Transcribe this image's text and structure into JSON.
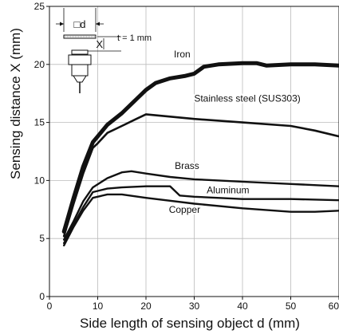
{
  "chart_data": {
    "type": "line",
    "title": "",
    "xlabel": "Side length of sensing object d (mm)",
    "ylabel": "Sensing distance X (mm)",
    "xlim": [
      0,
      60
    ],
    "ylim": [
      0,
      25
    ],
    "xticks": [
      0,
      10,
      20,
      30,
      40,
      50,
      60
    ],
    "yticks": [
      0,
      5,
      10,
      15,
      20,
      25
    ],
    "grid": true,
    "legend": "inline labels",
    "series": [
      {
        "name": "Iron",
        "x": [
          3,
          5,
          7,
          9,
          10,
          12,
          15,
          18,
          20,
          22,
          25,
          28,
          30,
          32,
          35,
          40,
          43,
          45,
          50,
          55,
          60
        ],
        "y": [
          5.6,
          8.5,
          11.2,
          13.3,
          13.8,
          14.8,
          15.8,
          17.0,
          17.8,
          18.4,
          18.8,
          19.0,
          19.2,
          19.8,
          20.0,
          20.1,
          20.1,
          19.9,
          20.0,
          20.0,
          19.9
        ]
      },
      {
        "name": "Stainless steel (SUS303)",
        "x": [
          3,
          5,
          7,
          9,
          10,
          12,
          15,
          18,
          20,
          25,
          30,
          40,
          50,
          55,
          60
        ],
        "y": [
          5.2,
          8.0,
          10.6,
          12.8,
          13.2,
          14.1,
          14.7,
          15.3,
          15.7,
          15.5,
          15.3,
          15.0,
          14.7,
          14.3,
          13.8
        ]
      },
      {
        "name": "Brass",
        "x": [
          3,
          5,
          7,
          9,
          12,
          15,
          17,
          20,
          25,
          30,
          40,
          50,
          60
        ],
        "y": [
          4.9,
          6.5,
          8.2,
          9.4,
          10.2,
          10.7,
          10.8,
          10.6,
          10.3,
          10.1,
          9.9,
          9.7,
          9.5
        ]
      },
      {
        "name": "Aluminum",
        "x": [
          3,
          5,
          7,
          9,
          12,
          15,
          20,
          25,
          27,
          30,
          40,
          50,
          60
        ],
        "y": [
          4.6,
          6.2,
          7.7,
          9.0,
          9.3,
          9.4,
          9.5,
          9.5,
          8.7,
          8.6,
          8.4,
          8.4,
          8.3
        ]
      },
      {
        "name": "Copper",
        "x": [
          3,
          5,
          7,
          9,
          12,
          15,
          20,
          30,
          40,
          50,
          55,
          60
        ],
        "y": [
          4.4,
          6.0,
          7.4,
          8.5,
          8.8,
          8.8,
          8.5,
          8.0,
          7.6,
          7.3,
          7.3,
          7.4
        ]
      }
    ],
    "labels": [
      "Iron",
      "Stainless steel (SUS303)",
      "Brass",
      "Aluminum",
      "Copper"
    ],
    "inset": {
      "d_label": "□d",
      "x_label": "X",
      "t_label": "t = 1 mm"
    }
  }
}
